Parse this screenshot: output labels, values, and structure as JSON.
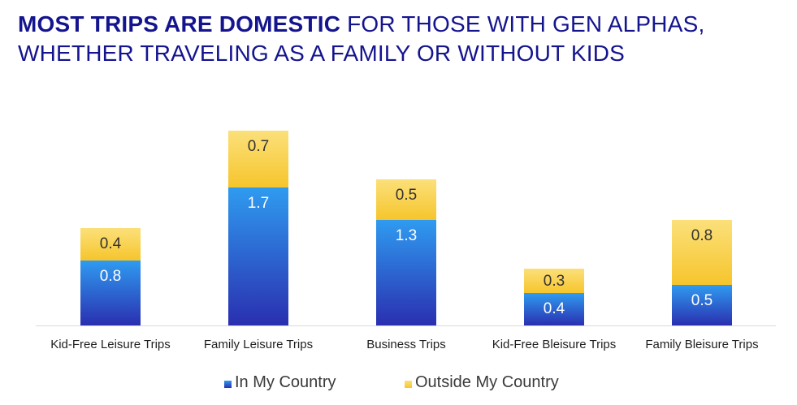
{
  "title": {
    "line1_bold": "MOST TRIPS ARE DOMESTIC",
    "line1_rest": " FOR THOSE WITH GEN ALPHAS,",
    "line2": "WHETHER TRAVELING AS A FAMILY OR WITHOUT KIDS"
  },
  "colors": {
    "title": "#14148f",
    "in_my_country_top": "#2f9bf0",
    "in_my_country_bottom": "#2a2fb0",
    "outside_top": "#fbe07a",
    "outside_bottom": "#f6c52c",
    "label_on_blue": "#ffffff",
    "label_on_yellow": "#333333"
  },
  "chart_data": {
    "type": "bar",
    "stacked": true,
    "categories": [
      "Kid-Free Leisure Trips",
      "Family Leisure Trips",
      "Business Trips",
      "Kid-Free Bleisure Trips",
      "Family Bleisure Trips"
    ],
    "series": [
      {
        "name": "In My Country",
        "values": [
          0.8,
          1.7,
          1.3,
          0.4,
          0.5
        ]
      },
      {
        "name": "Outside My Country",
        "values": [
          0.4,
          0.7,
          0.5,
          0.3,
          0.8
        ]
      }
    ],
    "ylim": [
      0,
      2.4
    ],
    "grid": false,
    "legend_position": "bottom"
  }
}
